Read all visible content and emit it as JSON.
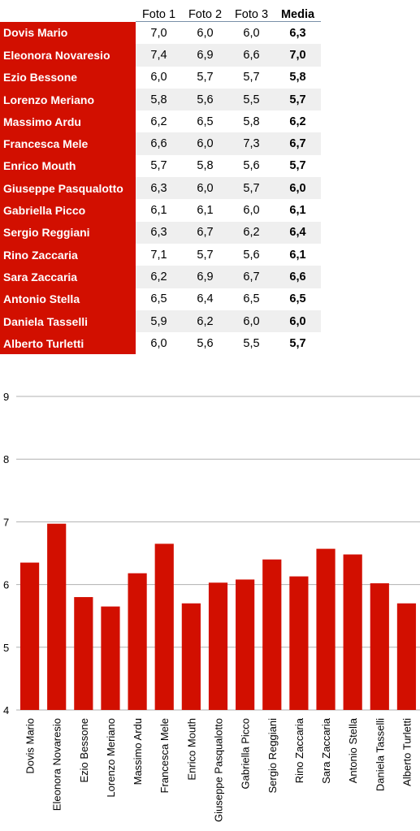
{
  "table": {
    "headers": [
      "Foto 1",
      "Foto 2",
      "Foto 3",
      "Media"
    ],
    "rows": [
      {
        "name": "Dovis Mario",
        "f1": "7,0",
        "f2": "6,0",
        "f3": "6,0",
        "avg": "6,3"
      },
      {
        "name": "Eleonora Novaresio",
        "f1": "7,4",
        "f2": "6,9",
        "f3": "6,6",
        "avg": "7,0"
      },
      {
        "name": "Ezio Bessone",
        "f1": "6,0",
        "f2": "5,7",
        "f3": "5,7",
        "avg": "5,8"
      },
      {
        "name": "Lorenzo Meriano",
        "f1": "5,8",
        "f2": "5,6",
        "f3": "5,5",
        "avg": "5,7"
      },
      {
        "name": "Massimo Ardu",
        "f1": "6,2",
        "f2": "6,5",
        "f3": "5,8",
        "avg": "6,2"
      },
      {
        "name": "Francesca Mele",
        "f1": "6,6",
        "f2": "6,0",
        "f3": "7,3",
        "avg": "6,7"
      },
      {
        "name": "Enrico Mouth",
        "f1": "5,7",
        "f2": "5,8",
        "f3": "5,6",
        "avg": "5,7"
      },
      {
        "name": "Giuseppe Pasqualotto",
        "f1": "6,3",
        "f2": "6,0",
        "f3": "5,7",
        "avg": "6,0"
      },
      {
        "name": "Gabriella Picco",
        "f1": "6,1",
        "f2": "6,1",
        "f3": "6,0",
        "avg": "6,1"
      },
      {
        "name": "Sergio Reggiani",
        "f1": "6,3",
        "f2": "6,7",
        "f3": "6,2",
        "avg": "6,4"
      },
      {
        "name": "Rino Zaccaria",
        "f1": "7,1",
        "f2": "5,7",
        "f3": "5,6",
        "avg": "6,1"
      },
      {
        "name": "Sara Zaccaria",
        "f1": "6,2",
        "f2": "6,9",
        "f3": "6,7",
        "avg": "6,6"
      },
      {
        "name": "Antonio Stella",
        "f1": "6,5",
        "f2": "6,4",
        "f3": "6,5",
        "avg": "6,5"
      },
      {
        "name": "Daniela Tasselli",
        "f1": "5,9",
        "f2": "6,2",
        "f3": "6,0",
        "avg": "6,0"
      },
      {
        "name": "Alberto Turletti",
        "f1": "6,0",
        "f2": "5,6",
        "f3": "5,5",
        "avg": "5,7"
      }
    ]
  },
  "chart_data": {
    "type": "bar",
    "categories": [
      "Dovis Mario",
      "Eleonora Novaresio",
      "Ezio Bessone",
      "Lorenzo Meriano",
      "Massimo Ardu",
      "Francesca Mele",
      "Enrico Mouth",
      "Giuseppe Pasqualotto",
      "Gabriella Picco",
      "Sergio Reggiani",
      "Rino Zaccaria",
      "Sara Zaccaria",
      "Antonio Stella",
      "Daniela Tasselli",
      "Alberto Turletti"
    ],
    "values": [
      6.35,
      6.97,
      5.8,
      5.65,
      6.18,
      6.65,
      5.7,
      6.03,
      6.08,
      6.4,
      6.13,
      6.57,
      6.48,
      6.02,
      5.7
    ],
    "ylim": [
      4,
      9
    ],
    "yticks": [
      4,
      5,
      6,
      7,
      8,
      9
    ],
    "grid": true,
    "bar_color": "#d20f00",
    "grid_color": "#b0b0b0"
  }
}
